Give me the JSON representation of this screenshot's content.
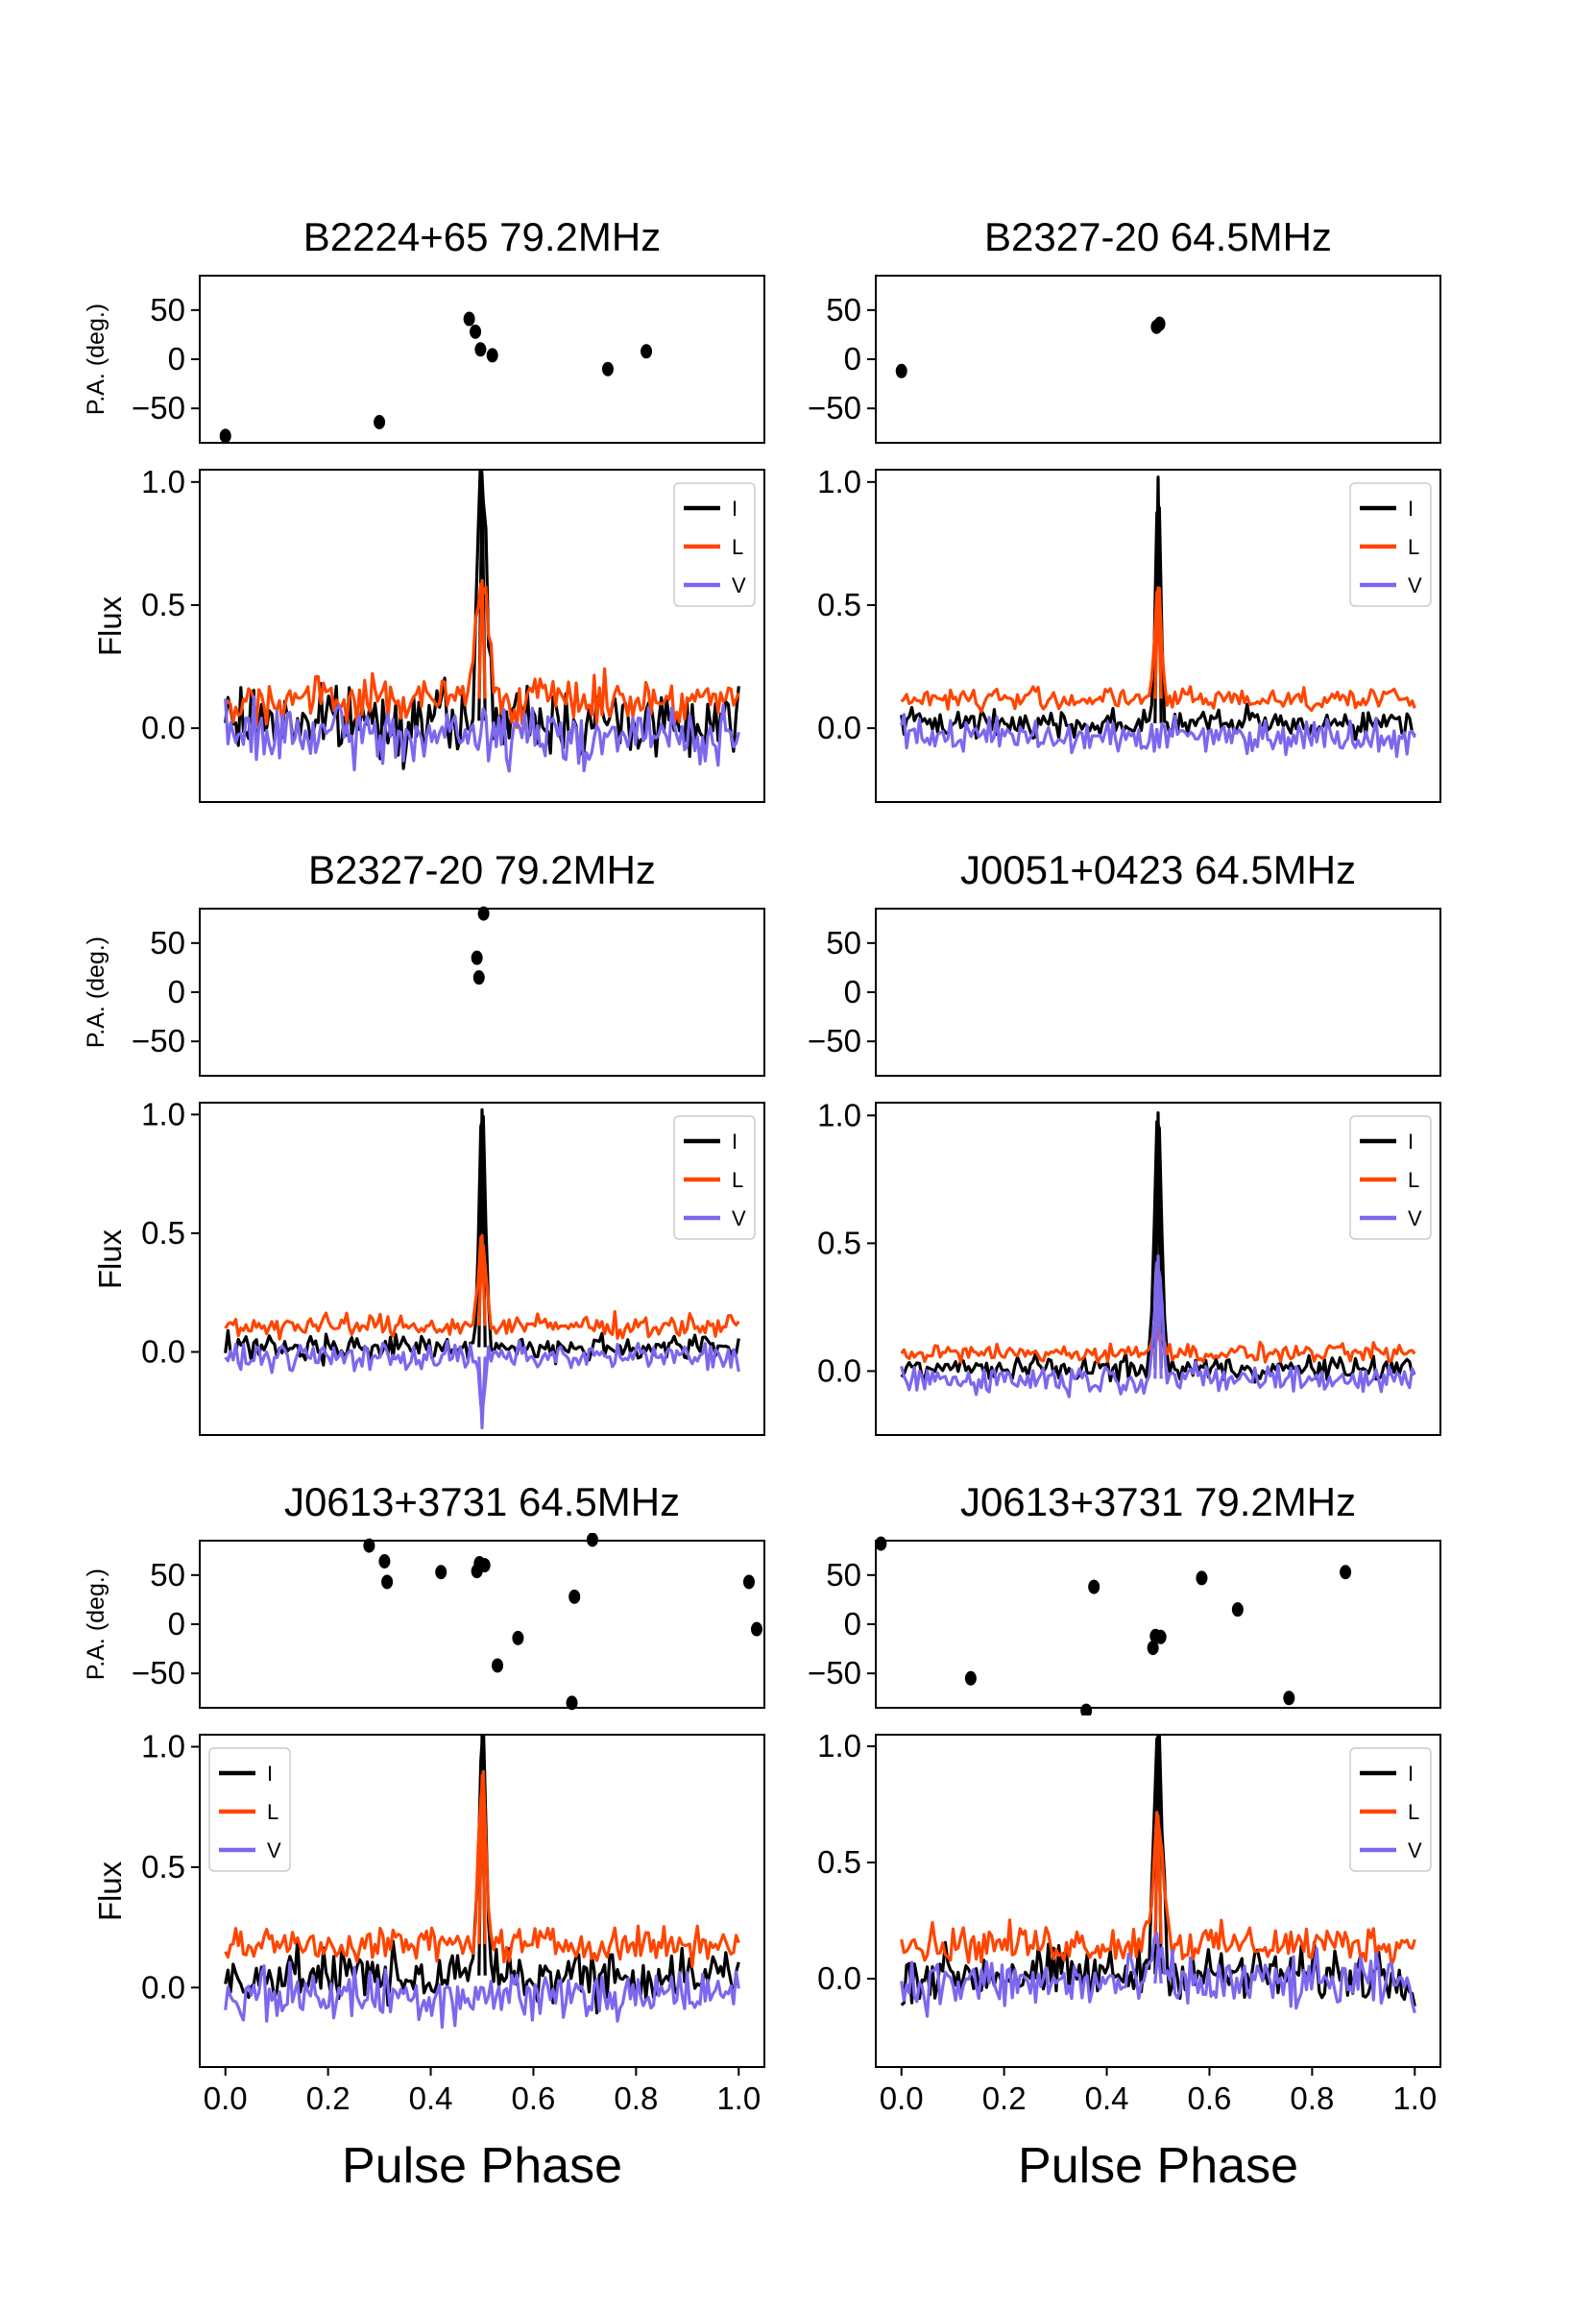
{
  "figure": {
    "xlabel": "Pulse Phase"
  },
  "chart_data": [
    {
      "type": "line",
      "title": "B2224+65 79.2MHz",
      "xlabel": "Pulse Phase",
      "pa": {
        "ylabel": "P.A. (deg.)",
        "ylim": [
          -85,
          85
        ],
        "yticks": [
          "50",
          "0",
          "−50"
        ],
        "points": [
          [
            0.0,
            -78
          ],
          [
            0.3,
            -64
          ],
          [
            0.475,
            41
          ],
          [
            0.487,
            28
          ],
          [
            0.497,
            10
          ],
          [
            0.52,
            4
          ],
          [
            0.745,
            -10
          ],
          [
            0.82,
            8
          ]
        ]
      },
      "flux": {
        "ylabel": "Flux",
        "ylim": [
          -0.3,
          1.05
        ],
        "yticks": [
          "1.0",
          "0.5",
          "0.0"
        ],
        "legend_loc": "upper-right",
        "series": [
          {
            "name": "I",
            "color": "#000000",
            "noise": 0.12,
            "base": 0.03,
            "peak": 1.0,
            "center": 0.5,
            "width": 0.009
          },
          {
            "name": "L",
            "color": "#ff4500",
            "noise": 0.08,
            "base": 0.12,
            "peak": 0.48,
            "center": 0.5,
            "width": 0.012
          },
          {
            "name": "V",
            "color": "#7b68ee",
            "noise": 0.1,
            "base": -0.03,
            "peak": 0.0,
            "center": 0.5,
            "width": 0.01
          }
        ]
      }
    },
    {
      "type": "line",
      "title": "B2327-20 64.5MHz",
      "xlabel": "Pulse Phase",
      "pa": {
        "ylabel": "",
        "ylim": [
          -85,
          85
        ],
        "yticks": [
          "50",
          "0",
          "−50"
        ],
        "points": [
          [
            0.0,
            -12
          ],
          [
            0.497,
            33
          ],
          [
            0.503,
            36
          ]
        ]
      },
      "flux": {
        "ylabel": "",
        "ylim": [
          -0.3,
          1.05
        ],
        "yticks": [
          "1.0",
          "0.5",
          "0.0"
        ],
        "legend_loc": "upper-right",
        "series": [
          {
            "name": "I",
            "color": "#000000",
            "noise": 0.05,
            "base": 0.02,
            "peak": 1.0,
            "center": 0.5,
            "width": 0.005
          },
          {
            "name": "L",
            "color": "#ff4500",
            "noise": 0.04,
            "base": 0.12,
            "peak": 0.45,
            "center": 0.5,
            "width": 0.006
          },
          {
            "name": "V",
            "color": "#7b68ee",
            "noise": 0.06,
            "base": -0.03,
            "peak": 0.0,
            "center": 0.5,
            "width": 0.006
          }
        ]
      }
    },
    {
      "type": "line",
      "title": "B2327-20 79.2MHz",
      "xlabel": "Pulse Phase",
      "pa": {
        "ylabel": "P.A. (deg.)",
        "ylim": [
          -85,
          85
        ],
        "yticks": [
          "50",
          "0",
          "−50"
        ],
        "points": [
          [
            0.49,
            35
          ],
          [
            0.494,
            15
          ],
          [
            0.503,
            80
          ]
        ]
      },
      "flux": {
        "ylabel": "Flux",
        "ylim": [
          -0.35,
          1.05
        ],
        "yticks": [
          "1.0",
          "0.5",
          "0.0"
        ],
        "legend_loc": "upper-right",
        "series": [
          {
            "name": "I",
            "color": "#000000",
            "noise": 0.05,
            "base": 0.02,
            "peak": 1.0,
            "center": 0.5,
            "width": 0.006
          },
          {
            "name": "L",
            "color": "#ff4500",
            "noise": 0.04,
            "base": 0.11,
            "peak": 0.38,
            "center": 0.5,
            "width": 0.007
          },
          {
            "name": "V",
            "color": "#7b68ee",
            "noise": 0.05,
            "base": -0.02,
            "peak": -0.3,
            "center": 0.5,
            "width": 0.004
          }
        ]
      }
    },
    {
      "type": "line",
      "title": "J0051+0423 64.5MHz",
      "xlabel": "Pulse Phase",
      "pa": {
        "ylabel": "",
        "ylim": [
          -85,
          85
        ],
        "yticks": [
          "50",
          "0",
          "−50"
        ],
        "points": []
      },
      "flux": {
        "ylabel": "",
        "ylim": [
          -0.25,
          1.05
        ],
        "yticks": [
          "1.0",
          "0.5",
          "0.0"
        ],
        "legend_loc": "upper-right",
        "series": [
          {
            "name": "I",
            "color": "#000000",
            "noise": 0.04,
            "base": 0.01,
            "peak": 1.0,
            "center": 0.5,
            "width": 0.007
          },
          {
            "name": "L",
            "color": "#ff4500",
            "noise": 0.03,
            "base": 0.07,
            "peak": 0.12,
            "center": 0.5,
            "width": 0.01
          },
          {
            "name": "V",
            "color": "#7b68ee",
            "noise": 0.05,
            "base": -0.03,
            "peak": 0.48,
            "center": 0.5,
            "width": 0.007
          }
        ]
      }
    },
    {
      "type": "line",
      "title": "J0613+3731 64.5MHz",
      "xlabel": "Pulse Phase",
      "pa": {
        "ylabel": "P.A. (deg.)",
        "ylim": [
          -85,
          85
        ],
        "yticks": [
          "50",
          "0",
          "−50"
        ],
        "points": [
          [
            0.28,
            80
          ],
          [
            0.31,
            64
          ],
          [
            0.315,
            43
          ],
          [
            0.42,
            53
          ],
          [
            0.49,
            54
          ],
          [
            0.495,
            62
          ],
          [
            0.505,
            60
          ],
          [
            0.53,
            -42
          ],
          [
            0.57,
            -14
          ],
          [
            0.675,
            -80
          ],
          [
            0.68,
            28
          ],
          [
            0.715,
            86
          ],
          [
            1.02,
            43
          ],
          [
            1.035,
            -5
          ]
        ]
      },
      "flux": {
        "ylabel": "Flux",
        "ylim": [
          -0.33,
          1.05
        ],
        "yticks": [
          "1.0",
          "0.5",
          "0.0"
        ],
        "legend_loc": "upper-left",
        "series": [
          {
            "name": "I",
            "color": "#000000",
            "noise": 0.1,
            "base": 0.05,
            "peak": 1.0,
            "center": 0.5,
            "width": 0.007
          },
          {
            "name": "L",
            "color": "#ff4500",
            "noise": 0.06,
            "base": 0.18,
            "peak": 0.7,
            "center": 0.5,
            "width": 0.007
          },
          {
            "name": "V",
            "color": "#7b68ee",
            "noise": 0.1,
            "base": -0.03,
            "peak": 0.0,
            "center": 0.5,
            "width": 0.007
          }
        ]
      }
    },
    {
      "type": "line",
      "title": "J0613+3731 79.2MHz",
      "xlabel": "Pulse Phase",
      "pa": {
        "ylabel": "",
        "ylim": [
          -85,
          85
        ],
        "yticks": [
          "50",
          "0",
          "−50"
        ],
        "points": [
          [
            -0.04,
            82
          ],
          [
            0.135,
            -55
          ],
          [
            0.36,
            -88
          ],
          [
            0.375,
            38
          ],
          [
            0.49,
            -24
          ],
          [
            0.495,
            -12
          ],
          [
            0.505,
            -13
          ],
          [
            0.585,
            47
          ],
          [
            0.655,
            15
          ],
          [
            0.755,
            -75
          ],
          [
            0.865,
            53
          ]
        ]
      },
      "flux": {
        "ylabel": "",
        "ylim": [
          -0.38,
          1.05
        ],
        "yticks": [
          "1.0",
          "0.5",
          "0.0"
        ],
        "legend_loc": "upper-right",
        "series": [
          {
            "name": "I",
            "color": "#000000",
            "noise": 0.1,
            "base": 0.02,
            "peak": 1.0,
            "center": 0.5,
            "width": 0.009
          },
          {
            "name": "L",
            "color": "#ff4500",
            "noise": 0.07,
            "base": 0.15,
            "peak": 0.55,
            "center": 0.5,
            "width": 0.01
          },
          {
            "name": "V",
            "color": "#7b68ee",
            "noise": 0.1,
            "base": -0.02,
            "peak": 0.15,
            "center": 0.5,
            "width": 0.01
          }
        ]
      }
    }
  ],
  "xticks": [
    "0.0",
    "0.2",
    "0.4",
    "0.6",
    "0.8",
    "1.0"
  ]
}
